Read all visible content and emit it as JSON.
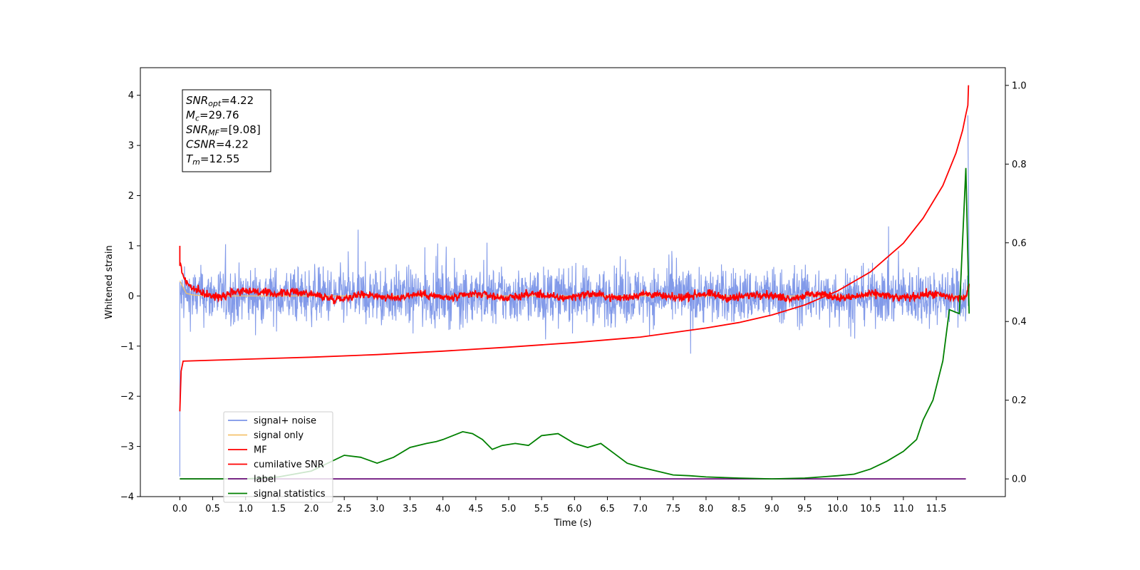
{
  "chart_data": {
    "type": "line",
    "xlabel": "Time (s)",
    "ylabel": "Whitened strain",
    "xlim": [
      -0.6,
      12.55
    ],
    "ylim_left": [
      -4,
      4.55
    ],
    "ylim_right": [
      -0.045,
      1.045
    ],
    "x_ticks": [
      "0.0",
      "0.5",
      "1.0",
      "1.5",
      "2.0",
      "2.5",
      "3.0",
      "3.5",
      "4.0",
      "4.5",
      "5.0",
      "5.5",
      "6.0",
      "6.5",
      "7.0",
      "7.5",
      "8.0",
      "8.5",
      "9.0",
      "9.5",
      "10.0",
      "10.5",
      "11.0",
      "11.5"
    ],
    "y_ticks_left": [
      "−4",
      "−3",
      "−2",
      "−1",
      "0",
      "1",
      "2",
      "3",
      "4"
    ],
    "y_ticks_right": [
      "0.0",
      "0.2",
      "0.4",
      "0.6",
      "0.8",
      "1.0"
    ],
    "stats_box": [
      {
        "var": "SNR",
        "sub": "opt",
        "value": "=4.22"
      },
      {
        "var": "M",
        "sub": "c",
        "value": "=29.76"
      },
      {
        "var": "SNR",
        "sub": "MF",
        "value": "=[9.08]"
      },
      {
        "var": "CSNR",
        "sub": "",
        "value": "=4.22"
      },
      {
        "var": "T",
        "sub": "m",
        "value": "=12.55"
      }
    ],
    "legend_position": "lower-left",
    "legend": [
      {
        "label": "signal+ noise",
        "color": "#7b95e8"
      },
      {
        "label": "signal only",
        "color": "#f5c36b"
      },
      {
        "label": "MF",
        "color": "#ff0000"
      },
      {
        "label": "cumilative SNR",
        "color": "#ff0000"
      },
      {
        "label": "label",
        "color": "#6a0d7a"
      },
      {
        "label": "signal statistics",
        "color": "#008000"
      }
    ],
    "series": [
      {
        "name": "signal+ noise",
        "axis": "left",
        "color": "#7b95e8",
        "description_noise_amplitude": 0.55,
        "x": [
          0.0,
          12.0
        ],
        "end_spike": {
          "x": 11.98,
          "y": 3.6
        }
      },
      {
        "name": "signal only",
        "axis": "left",
        "color": "#f5c36b",
        "x": [
          0.0,
          0.1,
          0.2,
          0.3,
          0.5,
          1.0,
          12.0
        ],
        "y": [
          0.3,
          0.05,
          0.02,
          0.01,
          0.0,
          0.0,
          0.0
        ]
      },
      {
        "name": "MF",
        "axis": "left",
        "color": "#ff0000",
        "x": [
          0.0,
          0.05,
          0.1,
          0.2,
          0.3,
          0.5,
          0.8,
          1.2,
          1.6,
          2.0,
          2.5,
          3.0,
          4.0,
          5.0,
          6.0,
          7.0,
          8.0,
          9.0,
          10.0,
          11.0,
          11.5,
          11.8,
          11.95,
          12.0
        ],
        "y": [
          0.65,
          0.4,
          0.25,
          0.1,
          0.05,
          0.0,
          0.1,
          0.05,
          0.1,
          0.0,
          -0.02,
          0.0,
          0.0,
          0.0,
          0.0,
          0.0,
          0.0,
          0.0,
          0.0,
          0.0,
          0.0,
          0.0,
          0.0,
          0.2
        ]
      },
      {
        "name": "cumilative SNR",
        "axis": "left",
        "color": "#ff0000",
        "x": [
          0.0,
          0.02,
          0.05,
          1.0,
          2.0,
          3.0,
          4.0,
          5.0,
          6.0,
          7.0,
          8.0,
          8.5,
          9.0,
          9.5,
          10.0,
          10.5,
          11.0,
          11.3,
          11.6,
          11.8,
          11.9,
          11.95,
          11.98,
          11.99
        ],
        "y": [
          -2.3,
          -1.5,
          -1.3,
          -1.26,
          -1.22,
          -1.17,
          -1.1,
          -1.02,
          -0.93,
          -0.82,
          -0.64,
          -0.53,
          -0.38,
          -0.18,
          0.1,
          0.48,
          1.05,
          1.55,
          2.2,
          2.85,
          3.3,
          3.62,
          3.8,
          4.2
        ]
      },
      {
        "name": "label",
        "axis": "right",
        "color": "#6a0d7a",
        "x": [
          0.0,
          11.95
        ],
        "y": [
          0.0,
          0.0
        ]
      },
      {
        "name": "signal statistics",
        "axis": "right",
        "color": "#008000",
        "x": [
          0.0,
          0.5,
          1.0,
          1.5,
          2.0,
          2.25,
          2.5,
          2.75,
          3.0,
          3.25,
          3.5,
          3.75,
          3.9,
          4.0,
          4.15,
          4.3,
          4.45,
          4.6,
          4.75,
          4.9,
          5.1,
          5.3,
          5.5,
          5.75,
          6.0,
          6.2,
          6.4,
          6.6,
          6.8,
          7.0,
          7.25,
          7.5,
          7.75,
          8.0,
          8.5,
          9.0,
          9.5,
          9.75,
          10.0,
          10.25,
          10.5,
          10.75,
          11.0,
          11.2,
          11.3,
          11.45,
          11.6,
          11.7,
          11.85,
          11.95,
          12.0
        ],
        "y": [
          0.0,
          0.0,
          0.0,
          0.005,
          0.02,
          0.04,
          0.06,
          0.055,
          0.04,
          0.055,
          0.08,
          0.09,
          0.095,
          0.1,
          0.11,
          0.12,
          0.115,
          0.1,
          0.075,
          0.085,
          0.09,
          0.085,
          0.11,
          0.115,
          0.09,
          0.08,
          0.09,
          0.065,
          0.04,
          0.03,
          0.02,
          0.01,
          0.008,
          0.005,
          0.002,
          0.0,
          0.002,
          0.005,
          0.008,
          0.012,
          0.025,
          0.045,
          0.07,
          0.1,
          0.15,
          0.2,
          0.3,
          0.43,
          0.42,
          0.79,
          0.42
        ]
      }
    ]
  }
}
